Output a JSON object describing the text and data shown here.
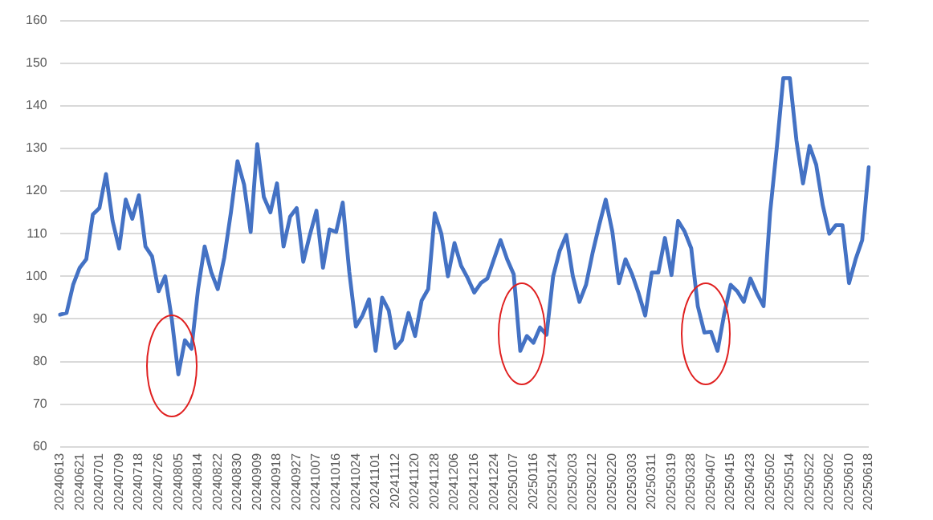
{
  "chart_data": {
    "type": "line",
    "categories": [
      "20240613",
      null,
      null,
      "20240621",
      null,
      null,
      "20240701",
      null,
      null,
      "20240709",
      null,
      null,
      "20240718",
      null,
      null,
      "20240726",
      null,
      null,
      "20240805",
      null,
      null,
      "20240814",
      null,
      null,
      "20240822",
      null,
      null,
      "20240830",
      null,
      null,
      "20240909",
      null,
      null,
      "20240918",
      null,
      null,
      "20240927",
      null,
      null,
      "20241007",
      null,
      null,
      "20241016",
      null,
      null,
      "20241024",
      null,
      null,
      "20241101",
      null,
      null,
      "20241112",
      null,
      null,
      "20241120",
      null,
      null,
      "20241128",
      null,
      null,
      "20241206",
      null,
      null,
      "20241216",
      null,
      null,
      "20241224",
      null,
      null,
      "20250107",
      null,
      null,
      "20250116",
      null,
      null,
      "20250124",
      null,
      null,
      "20250203",
      null,
      null,
      "20250212",
      null,
      null,
      "20250220",
      null,
      null,
      "20250303",
      null,
      null,
      "20250311",
      null,
      null,
      "20250319",
      null,
      null,
      "20250328",
      null,
      null,
      "20250407",
      null,
      null,
      "20250415",
      null,
      null,
      "20250423",
      null,
      null,
      "20250502",
      null,
      null,
      "20250514",
      null,
      null,
      "20250522",
      null,
      null,
      "20250602",
      null,
      null,
      "20250610",
      null,
      null,
      "20250618"
    ],
    "series": [
      {
        "color": "#4472c4",
        "values": [
          91,
          91.4,
          98,
          102,
          104,
          114.5,
          116,
          124,
          113,
          106.5,
          118,
          113.5,
          119,
          107,
          104.7,
          96.5,
          100,
          90,
          77,
          85,
          83,
          97,
          107,
          101,
          97,
          104.5,
          115,
          127,
          121.5,
          110.4,
          131,
          118.6,
          115,
          121.8,
          107,
          114,
          116,
          103.4,
          109.7,
          115.4,
          102,
          111,
          110.4,
          117.3,
          101,
          88.2,
          90.8,
          94.6,
          82.5,
          95,
          92,
          83.2,
          85,
          91.4,
          86,
          94.3,
          97,
          114.8,
          110,
          100,
          107.8,
          102.5,
          99.6,
          96.2,
          98.4,
          99.5,
          104,
          108.5,
          104,
          100.5,
          82.5,
          86,
          84.4,
          88,
          86.3,
          100,
          106,
          109.7,
          100,
          94,
          98,
          105.5,
          112,
          118,
          110.5,
          98.4,
          104,
          100.5,
          96,
          90.8,
          100.9,
          100.9,
          109,
          100.3,
          113,
          110.5,
          106.6,
          93,
          86.8,
          87,
          82.5,
          91,
          98,
          96.5,
          94,
          99.5,
          96,
          93,
          115,
          130,
          146.5,
          146.5,
          131.9,
          121.8,
          130.6,
          126.2,
          116.7,
          110,
          112,
          112,
          98.4,
          104,
          108.5,
          125.6
        ]
      }
    ],
    "ylim": [
      60,
      160
    ],
    "yticks": [
      60,
      70,
      80,
      90,
      100,
      110,
      120,
      130,
      140,
      150,
      160
    ],
    "grid": "y",
    "legend": false,
    "marker": "none",
    "line_style": "solid"
  }
}
